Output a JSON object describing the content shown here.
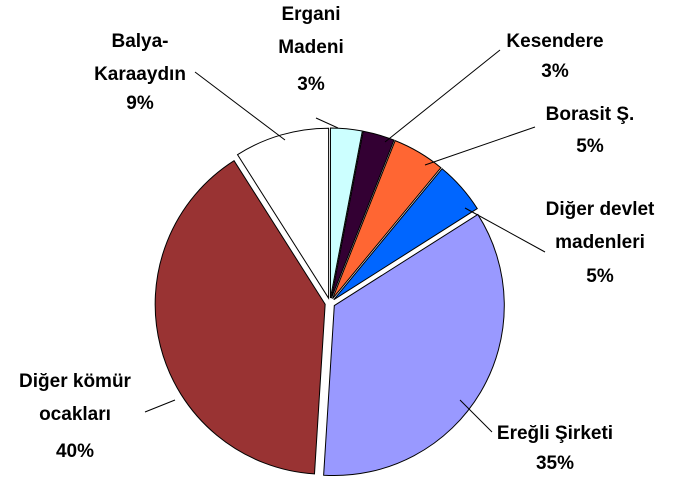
{
  "chart_data": {
    "type": "pie",
    "categories": [
      "Ergani\nMadeni",
      "Kesendere",
      "Borasit Ş.",
      "Diğer devlet\nmadenleri",
      "Ereğli Şirketi",
      "Diğer kömür\nocakları",
      "Balya-\nKaraaydın"
    ],
    "values": [
      3,
      3,
      5,
      5,
      35,
      40,
      9
    ],
    "value_labels": [
      "3%",
      "3%",
      "5%",
      "5%",
      "35%",
      "40%",
      "9%"
    ],
    "colors": [
      "#ccffff",
      "#330033",
      "#ff6633",
      "#0066ff",
      "#9999ff",
      "#993333",
      "#ffffff"
    ]
  }
}
